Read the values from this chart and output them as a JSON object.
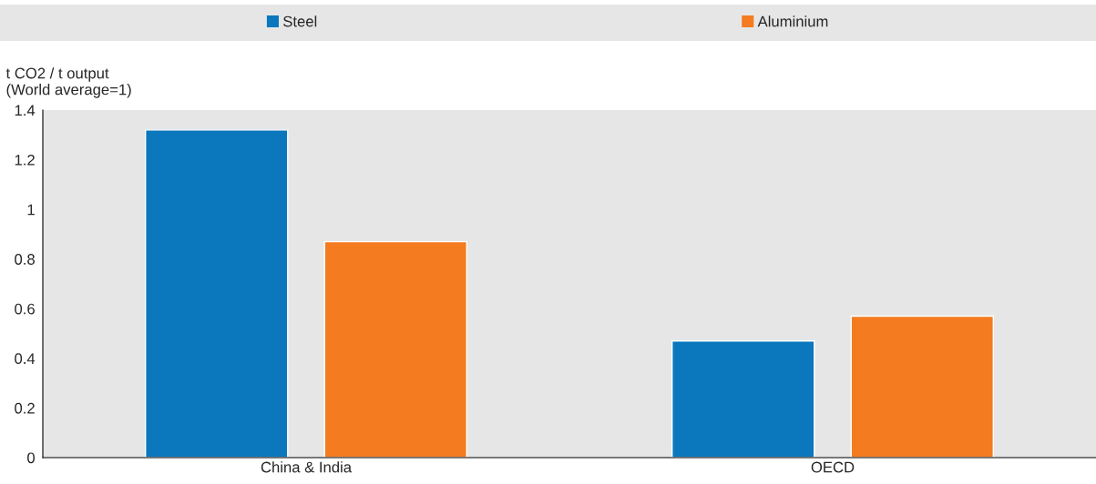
{
  "chart_data": {
    "type": "bar",
    "ylabel": "t CO2 / t output\n(World average=1)",
    "categories": [
      "China & India",
      "OECD"
    ],
    "series": [
      {
        "name": "Steel",
        "color": "#0b77bd",
        "values": [
          1.32,
          0.47
        ]
      },
      {
        "name": "Aluminium",
        "color": "#f47b20",
        "values": [
          0.87,
          0.57
        ]
      }
    ],
    "ylim": [
      0,
      1.4
    ],
    "yticks": [
      0,
      0.2,
      0.4,
      0.6,
      0.8,
      1,
      1.2,
      1.4
    ],
    "grid": false,
    "legend": "top"
  }
}
